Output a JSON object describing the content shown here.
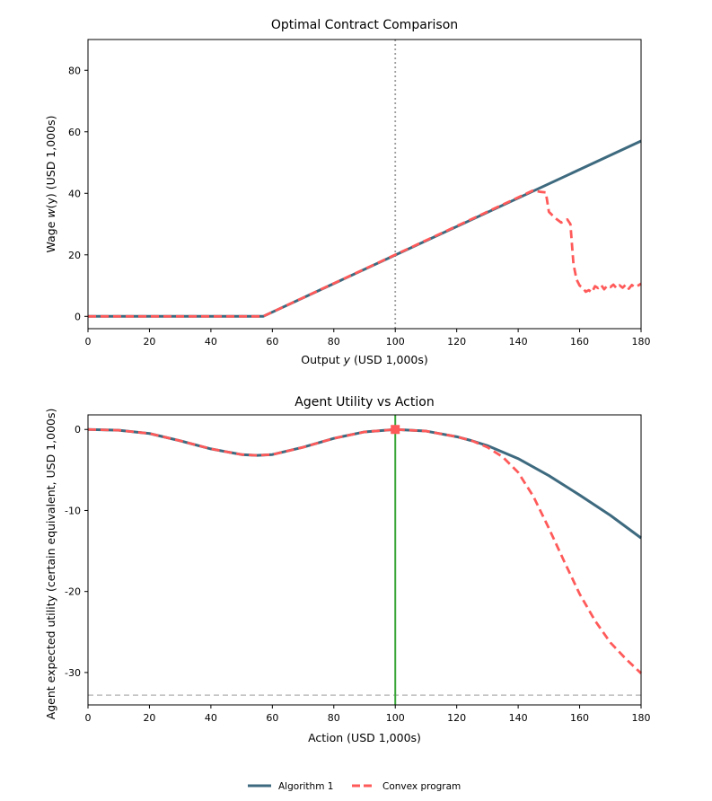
{
  "colors": {
    "algorithm": "#3e6a7f",
    "convex": "#ff5a5a",
    "vline_dotted": "#9e9e9e",
    "vline_green": "#3aa63a",
    "hline_dashed": "#bdbdbd"
  },
  "legend": {
    "algorithm_label": "Algorithm 1",
    "convex_label": "Convex program"
  },
  "chart_data": [
    {
      "type": "line",
      "title": "Optimal Contract Comparison",
      "xlabel_pre": "Output ",
      "xlabel_var": "y",
      "xlabel_post": " (USD 1,000s)",
      "ylabel_pre": "Wage ",
      "ylabel_var": "w",
      "ylabel_post": "(y) (USD 1,000s)",
      "xlim": [
        0,
        180
      ],
      "ylim": [
        -4,
        90
      ],
      "xticks": [
        0,
        20,
        40,
        60,
        80,
        100,
        120,
        140,
        160,
        180
      ],
      "xtick_labels": [
        "0",
        "20",
        "40",
        "60",
        "80",
        "100",
        "120",
        "140",
        "160",
        "180"
      ],
      "yticks": [
        0,
        20,
        40,
        60,
        80
      ],
      "ytick_labels": [
        "0",
        "20",
        "40",
        "60",
        "80"
      ],
      "vline_x": 100,
      "series": [
        {
          "name": "Algorithm 1",
          "x": [
            0,
            57,
            180
          ],
          "y": [
            0,
            0,
            57
          ]
        },
        {
          "name": "Convex program",
          "x": [
            0,
            57,
            145,
            147,
            149,
            150,
            152,
            154,
            156,
            157,
            158,
            159,
            160,
            161,
            162,
            163,
            164,
            165,
            166,
            167,
            168,
            169,
            170,
            171,
            172,
            173,
            174,
            175,
            176,
            177,
            178,
            179,
            180
          ],
          "y": [
            0,
            0,
            41,
            40.5,
            40.3,
            34,
            32,
            30.5,
            31.5,
            30,
            17,
            12,
            10,
            9.3,
            8,
            8.5,
            7.8,
            9.8,
            9.2,
            10.2,
            8.8,
            10,
            9.5,
            10.3,
            9.2,
            10.1,
            9.3,
            10.3,
            9,
            10.2,
            9.5,
            10,
            10.6
          ]
        }
      ]
    },
    {
      "type": "line",
      "title": "Agent Utility vs Action",
      "xlabel": "Action (USD 1,000s)",
      "ylabel": "Agent expected utility (certain equivalent, USD 1,000s)",
      "xlim": [
        0,
        180
      ],
      "ylim": [
        -34,
        1.8
      ],
      "xticks": [
        0,
        20,
        40,
        60,
        80,
        100,
        120,
        140,
        160,
        180
      ],
      "xtick_labels": [
        "0",
        "20",
        "40",
        "60",
        "80",
        "100",
        "120",
        "140",
        "160",
        "180"
      ],
      "yticks": [
        0,
        -10,
        -20,
        -30
      ],
      "ytick_labels": [
        "0",
        "-10",
        "-20",
        "-30"
      ],
      "vline_x": 100,
      "hline_y": -32.8,
      "marker": {
        "x": 100,
        "y": 0
      },
      "series": [
        {
          "name": "Algorithm 1",
          "x": [
            0,
            10,
            20,
            30,
            40,
            50,
            55,
            60,
            70,
            80,
            90,
            100,
            110,
            120,
            125,
            130,
            140,
            150,
            160,
            170,
            180
          ],
          "y": [
            0,
            -0.1,
            -0.5,
            -1.4,
            -2.4,
            -3.1,
            -3.2,
            -3.1,
            -2.2,
            -1.1,
            -0.3,
            0,
            -0.2,
            -0.9,
            -1.4,
            -2,
            -3.6,
            -5.7,
            -8.1,
            -10.6,
            -13.4
          ]
        },
        {
          "name": "Convex program",
          "x": [
            0,
            10,
            20,
            30,
            40,
            50,
            55,
            60,
            70,
            80,
            90,
            100,
            110,
            120,
            125,
            130,
            135,
            140,
            145,
            150,
            155,
            160,
            165,
            170,
            175,
            180
          ],
          "y": [
            0,
            -0.1,
            -0.5,
            -1.4,
            -2.4,
            -3.1,
            -3.2,
            -3.1,
            -2.2,
            -1.1,
            -0.3,
            0,
            -0.2,
            -0.9,
            -1.4,
            -2.2,
            -3.4,
            -5.3,
            -8.3,
            -12.2,
            -16.3,
            -20.3,
            -23.6,
            -26.3,
            -28.3,
            -30.1
          ]
        }
      ]
    }
  ]
}
